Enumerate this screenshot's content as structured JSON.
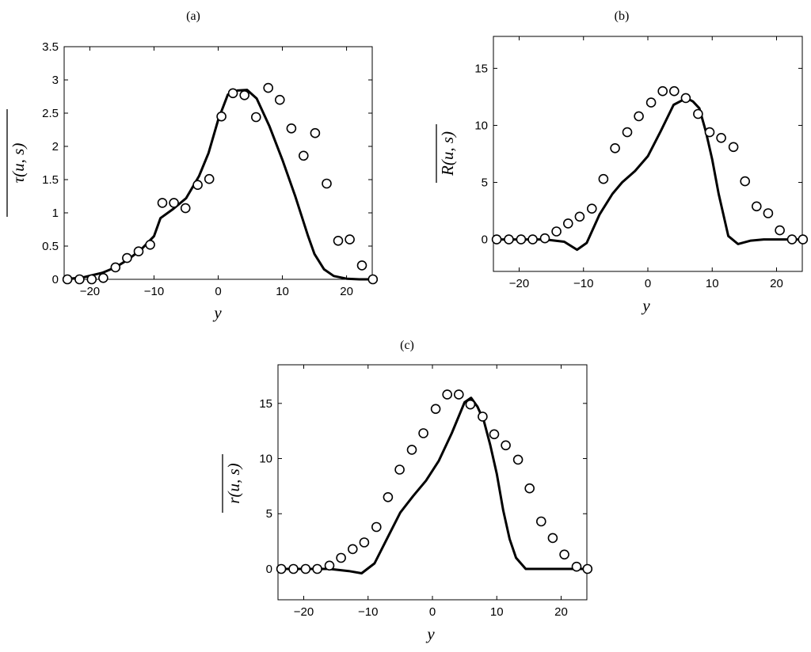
{
  "chart_data": [
    {
      "type": "scatter",
      "panel_label": "(a)",
      "ylabel": "τ(u, s)",
      "xlabel": "y",
      "xlim": [
        -24,
        24
      ],
      "ylim": [
        0,
        3.5
      ],
      "xticks": [
        -20,
        -10,
        0,
        10,
        20
      ],
      "yticks": [
        0,
        0.5,
        1,
        1.5,
        2,
        2.5,
        3,
        3.5
      ],
      "ytick_labels": [
        "0",
        "0.5",
        "1",
        "1.5",
        "2",
        "2.5",
        "3",
        "3.5"
      ],
      "line": {
        "x": [
          -24,
          -21,
          -18,
          -16,
          -14,
          -12,
          -10,
          -9,
          -7,
          -5,
          -3,
          -1.5,
          0,
          1.5,
          3,
          4.5,
          6,
          8,
          10,
          12,
          13,
          14,
          15,
          16.5,
          18,
          20,
          22,
          24
        ],
        "y": [
          0,
          0.03,
          0.1,
          0.18,
          0.3,
          0.45,
          0.65,
          0.92,
          1.06,
          1.22,
          1.55,
          1.9,
          2.4,
          2.78,
          2.84,
          2.85,
          2.72,
          2.3,
          1.8,
          1.25,
          0.95,
          0.65,
          0.38,
          0.15,
          0.05,
          0.01,
          0.0,
          0.0
        ]
      },
      "points": {
        "x": [
          -23.5,
          -21.6,
          -19.7,
          -17.9,
          -16.0,
          -14.2,
          -12.4,
          -10.6,
          -8.7,
          -6.9,
          -5.1,
          -3.2,
          -1.4,
          0.5,
          2.3,
          4.1,
          5.9,
          7.8,
          9.6,
          11.4,
          13.3,
          15.1,
          16.9,
          18.7,
          20.5,
          22.4,
          24.1
        ],
        "y": [
          0,
          0,
          0,
          0.02,
          0.18,
          0.32,
          0.42,
          0.52,
          1.15,
          1.15,
          1.07,
          1.42,
          1.51,
          2.45,
          2.8,
          2.77,
          2.44,
          2.88,
          2.7,
          2.27,
          1.86,
          2.2,
          1.44,
          0.58,
          0.6,
          0.21,
          0
        ]
      }
    },
    {
      "type": "scatter",
      "panel_label": "(b)",
      "ylabel": "R(u, s)",
      "xlabel": "y",
      "xlim": [
        -24,
        24
      ],
      "ylim": [
        -2.8,
        17.8
      ],
      "xticks": [
        -20,
        -10,
        0,
        10,
        20
      ],
      "yticks": [
        0,
        5,
        10,
        15
      ],
      "ytick_labels": [
        "0",
        "5",
        "10",
        "15"
      ],
      "line": {
        "x": [
          -24,
          -18,
          -16,
          -13,
          -11,
          -9.5,
          -7.5,
          -5.5,
          -4,
          -2,
          0,
          2,
          4,
          6,
          7,
          8,
          9,
          10,
          11,
          12.5,
          14,
          16,
          18,
          20,
          22,
          24
        ],
        "y": [
          0,
          0,
          0,
          -0.2,
          -0.9,
          -0.3,
          2.2,
          4.0,
          5.0,
          6.0,
          7.3,
          9.5,
          11.8,
          12.4,
          12.1,
          11.5,
          9.5,
          7.0,
          4.0,
          0.3,
          -0.4,
          -0.1,
          0,
          0,
          0,
          0
        ]
      },
      "points": {
        "x": [
          -23.5,
          -21.6,
          -19.7,
          -17.9,
          -16.0,
          -14.2,
          -12.4,
          -10.6,
          -8.7,
          -6.9,
          -5.1,
          -3.2,
          -1.4,
          0.5,
          2.3,
          4.1,
          5.9,
          7.8,
          9.6,
          11.4,
          13.3,
          15.1,
          16.9,
          18.7,
          20.5,
          22.4,
          24.1
        ],
        "y": [
          0,
          0,
          0,
          0,
          0.1,
          0.7,
          1.4,
          2.0,
          2.7,
          5.3,
          8.0,
          9.4,
          10.8,
          12.0,
          13.0,
          13.0,
          12.4,
          11.0,
          9.4,
          8.9,
          8.1,
          5.1,
          2.9,
          2.3,
          0.8,
          0,
          0
        ]
      }
    },
    {
      "type": "scatter",
      "panel_label": "(c)",
      "ylabel": "r(u, s)",
      "xlabel": "y",
      "xlim": [
        -24,
        24
      ],
      "ylim": [
        -2.8,
        18.5
      ],
      "xticks": [
        -20,
        -10,
        0,
        10,
        20
      ],
      "yticks": [
        0,
        5,
        10,
        15
      ],
      "ytick_labels": [
        "0",
        "5",
        "10",
        "15"
      ],
      "line": {
        "x": [
          -24,
          -18,
          -16,
          -13,
          -11,
          -9,
          -7,
          -5,
          -3,
          -1,
          1,
          3,
          5,
          6,
          7,
          8,
          9,
          10,
          11,
          12,
          13,
          14.5,
          16,
          18,
          20,
          22,
          24
        ],
        "y": [
          0,
          0,
          0,
          -0.2,
          -0.4,
          0.5,
          2.8,
          5.1,
          6.6,
          8.0,
          9.8,
          12.3,
          15.1,
          15.5,
          14.7,
          13.4,
          11.2,
          8.6,
          5.3,
          2.7,
          1.0,
          0,
          0,
          0,
          0,
          0,
          0
        ]
      },
      "points": {
        "x": [
          -23.5,
          -21.6,
          -19.7,
          -17.9,
          -16.0,
          -14.2,
          -12.4,
          -10.6,
          -8.7,
          -6.9,
          -5.1,
          -3.2,
          -1.4,
          0.5,
          2.3,
          4.1,
          5.9,
          7.8,
          9.6,
          11.4,
          13.3,
          15.1,
          16.9,
          18.7,
          20.5,
          22.4,
          24.1
        ],
        "y": [
          0,
          0,
          0,
          0,
          0.3,
          1.0,
          1.8,
          2.4,
          3.8,
          6.5,
          9.0,
          10.8,
          12.3,
          14.5,
          15.8,
          15.8,
          14.9,
          13.8,
          12.2,
          11.2,
          9.9,
          7.3,
          4.3,
          2.8,
          1.3,
          0.2,
          0
        ]
      }
    }
  ]
}
